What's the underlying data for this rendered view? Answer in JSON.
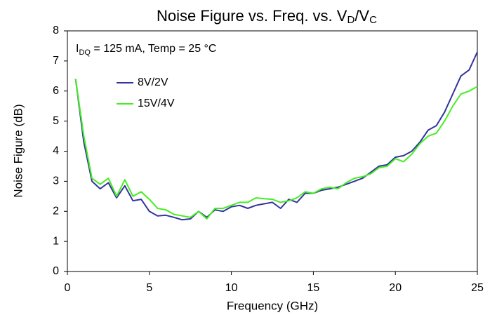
{
  "chart_data": {
    "type": "line",
    "title": [
      "Noise Figure vs. Freq. vs. V",
      "D",
      "/V",
      "C"
    ],
    "annotation": [
      "I",
      "DQ",
      " = 125 mA, Temp = 25 °C"
    ],
    "x_label": "Frequency (GHz)",
    "y_label": "Noise Figure (dB)",
    "xlim": [
      0,
      25
    ],
    "xticks": [
      0,
      5,
      10,
      15,
      20,
      25
    ],
    "ylim": [
      0,
      8
    ],
    "yticks": [
      0,
      1,
      2,
      3,
      4,
      5,
      6,
      7,
      8
    ],
    "grid": false,
    "legend": "upper left",
    "x": [
      0.5,
      1,
      1.5,
      2,
      2.5,
      3,
      3.5,
      4,
      4.5,
      5,
      5.5,
      6,
      6.5,
      7,
      7.5,
      8,
      8.5,
      9,
      9.5,
      10,
      10.5,
      11,
      11.5,
      12,
      12.5,
      13,
      13.5,
      14,
      14.5,
      15,
      15.5,
      16,
      16.5,
      17,
      17.5,
      18,
      18.5,
      19,
      19.5,
      20,
      20.5,
      21,
      21.5,
      22,
      22.5,
      23,
      23.5,
      24,
      24.5,
      25
    ],
    "series": [
      {
        "name": "8V/2V",
        "color": "#33339e",
        "values": [
          6.4,
          4.3,
          3.0,
          2.75,
          2.95,
          2.45,
          2.85,
          2.35,
          2.4,
          2.0,
          1.85,
          1.87,
          1.8,
          1.72,
          1.75,
          2.0,
          1.8,
          2.05,
          2.0,
          2.15,
          2.2,
          2.1,
          2.2,
          2.25,
          2.3,
          2.1,
          2.4,
          2.3,
          2.6,
          2.6,
          2.7,
          2.75,
          2.8,
          2.9,
          3.0,
          3.1,
          3.3,
          3.5,
          3.55,
          3.8,
          3.85,
          4.0,
          4.3,
          4.7,
          4.85,
          5.3,
          5.9,
          6.5,
          6.7,
          7.3
        ]
      },
      {
        "name": "15V/4V",
        "color": "#44ee22",
        "values": [
          6.4,
          4.5,
          3.1,
          2.9,
          3.1,
          2.5,
          3.05,
          2.5,
          2.65,
          2.4,
          2.1,
          2.05,
          1.9,
          1.85,
          1.8,
          2.0,
          1.75,
          2.1,
          2.1,
          2.2,
          2.3,
          2.3,
          2.45,
          2.42,
          2.4,
          2.3,
          2.35,
          2.45,
          2.65,
          2.6,
          2.75,
          2.8,
          2.75,
          2.95,
          3.1,
          3.15,
          3.25,
          3.45,
          3.5,
          3.75,
          3.65,
          3.9,
          4.25,
          4.5,
          4.6,
          5.0,
          5.5,
          5.9,
          6.0,
          6.15
        ]
      }
    ]
  }
}
